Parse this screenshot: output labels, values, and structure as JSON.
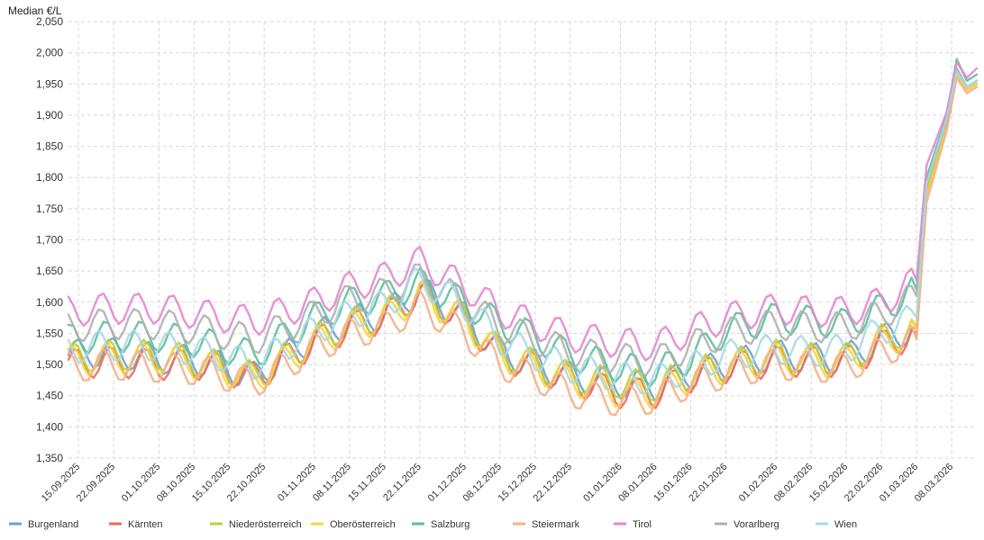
{
  "chart_data": {
    "type": "line",
    "ylabel": "Median €/L",
    "ylim": [
      1.35,
      2.05
    ],
    "yticks": [
      "1,350",
      "1,400",
      "1,450",
      "1,500",
      "1,550",
      "1,600",
      "1,650",
      "1,700",
      "1,750",
      "1,800",
      "1,850",
      "1,900",
      "1,950",
      "2,000",
      "2,050"
    ],
    "date_start": "2025-09-13",
    "date_end": "2026-03-13",
    "xticks": [
      "15.09.2025",
      "22.09.2025",
      "01.10.2025",
      "08.10.2025",
      "15.10.2025",
      "22.10.2025",
      "01.11.2025",
      "08.11.2025",
      "15.11.2025",
      "22.11.2025",
      "01.12.2025",
      "08.12.2025",
      "15.12.2025",
      "22.12.2025",
      "01.01.2026",
      "08.01.2026",
      "15.01.2026",
      "22.01.2026",
      "01.02.2026",
      "08.02.2026",
      "15.02.2026",
      "22.02.2026",
      "01.03.2026",
      "08.03.2026"
    ],
    "grid": true,
    "legend_position": "bottom",
    "series": [
      {
        "name": "Burgenland",
        "color": "#6f9fcf",
        "points": [
          [
            "2025-09-13",
            1.515
          ],
          [
            "2025-09-20",
            1.52
          ],
          [
            "2025-10-01",
            1.51
          ],
          [
            "2025-10-10",
            1.505
          ],
          [
            "2025-10-20",
            1.48
          ],
          [
            "2025-11-01",
            1.545
          ],
          [
            "2025-11-08",
            1.57
          ],
          [
            "2025-11-15",
            1.58
          ],
          [
            "2025-11-22",
            1.62
          ],
          [
            "2025-12-01",
            1.575
          ],
          [
            "2025-12-08",
            1.52
          ],
          [
            "2025-12-15",
            1.5
          ],
          [
            "2025-12-22",
            1.48
          ],
          [
            "2026-01-01",
            1.47
          ],
          [
            "2026-01-08",
            1.465
          ],
          [
            "2026-01-15",
            1.485
          ],
          [
            "2026-01-22",
            1.5
          ],
          [
            "2026-02-01",
            1.515
          ],
          [
            "2026-02-08",
            1.51
          ],
          [
            "2026-02-15",
            1.51
          ],
          [
            "2026-02-22",
            1.54
          ],
          [
            "2026-03-01",
            1.56
          ],
          [
            "2026-03-03",
            1.78
          ],
          [
            "2026-03-07",
            1.89
          ],
          [
            "2026-03-09",
            1.975
          ],
          [
            "2026-03-11",
            1.945
          ],
          [
            "2026-03-13",
            1.955
          ]
        ]
      },
      {
        "name": "Kärnten",
        "color": "#f06a57",
        "points": [
          [
            "2025-09-13",
            1.5
          ],
          [
            "2025-09-20",
            1.505
          ],
          [
            "2025-10-01",
            1.5
          ],
          [
            "2025-10-10",
            1.5
          ],
          [
            "2025-10-20",
            1.48
          ],
          [
            "2025-11-01",
            1.535
          ],
          [
            "2025-11-08",
            1.56
          ],
          [
            "2025-11-15",
            1.575
          ],
          [
            "2025-11-22",
            1.615
          ],
          [
            "2025-12-01",
            1.57
          ],
          [
            "2025-12-08",
            1.515
          ],
          [
            "2025-12-15",
            1.495
          ],
          [
            "2025-12-22",
            1.475
          ],
          [
            "2026-01-01",
            1.455
          ],
          [
            "2026-01-08",
            1.455
          ],
          [
            "2026-01-15",
            1.48
          ],
          [
            "2026-01-22",
            1.495
          ],
          [
            "2026-02-01",
            1.505
          ],
          [
            "2026-02-08",
            1.505
          ],
          [
            "2026-02-15",
            1.505
          ],
          [
            "2026-02-22",
            1.53
          ],
          [
            "2026-03-01",
            1.55
          ],
          [
            "2026-03-03",
            1.77
          ],
          [
            "2026-03-07",
            1.89
          ],
          [
            "2026-03-09",
            1.965
          ],
          [
            "2026-03-11",
            1.94
          ],
          [
            "2026-03-13",
            1.95
          ]
        ]
      },
      {
        "name": "Niederösterreich",
        "color": "#b8d33a",
        "points": [
          [
            "2025-09-13",
            1.51
          ],
          [
            "2025-09-20",
            1.515
          ],
          [
            "2025-10-01",
            1.515
          ],
          [
            "2025-10-10",
            1.505
          ],
          [
            "2025-10-20",
            1.48
          ],
          [
            "2025-11-01",
            1.54
          ],
          [
            "2025-11-08",
            1.565
          ],
          [
            "2025-11-15",
            1.58
          ],
          [
            "2025-11-22",
            1.615
          ],
          [
            "2025-12-01",
            1.575
          ],
          [
            "2025-12-08",
            1.52
          ],
          [
            "2025-12-15",
            1.5
          ],
          [
            "2025-12-22",
            1.48
          ],
          [
            "2026-01-01",
            1.47
          ],
          [
            "2026-01-08",
            1.465
          ],
          [
            "2026-01-15",
            1.485
          ],
          [
            "2026-01-22",
            1.5
          ],
          [
            "2026-02-01",
            1.515
          ],
          [
            "2026-02-08",
            1.51
          ],
          [
            "2026-02-15",
            1.51
          ],
          [
            "2026-02-22",
            1.54
          ],
          [
            "2026-03-01",
            1.56
          ],
          [
            "2026-03-03",
            1.78
          ],
          [
            "2026-03-07",
            1.885
          ],
          [
            "2026-03-09",
            1.97
          ],
          [
            "2026-03-11",
            1.94
          ],
          [
            "2026-03-13",
            1.95
          ]
        ]
      },
      {
        "name": "Oberösterreich",
        "color": "#fdd23c",
        "points": [
          [
            "2025-09-13",
            1.505
          ],
          [
            "2025-09-20",
            1.51
          ],
          [
            "2025-10-01",
            1.51
          ],
          [
            "2025-10-10",
            1.5
          ],
          [
            "2025-10-20",
            1.475
          ],
          [
            "2025-11-01",
            1.535
          ],
          [
            "2025-11-08",
            1.56
          ],
          [
            "2025-11-15",
            1.575
          ],
          [
            "2025-11-22",
            1.61
          ],
          [
            "2025-12-01",
            1.57
          ],
          [
            "2025-12-08",
            1.515
          ],
          [
            "2025-12-15",
            1.495
          ],
          [
            "2025-12-22",
            1.475
          ],
          [
            "2026-01-01",
            1.455
          ],
          [
            "2026-01-08",
            1.455
          ],
          [
            "2026-01-15",
            1.48
          ],
          [
            "2026-01-22",
            1.495
          ],
          [
            "2026-02-01",
            1.51
          ],
          [
            "2026-02-08",
            1.505
          ],
          [
            "2026-02-15",
            1.505
          ],
          [
            "2026-02-22",
            1.535
          ],
          [
            "2026-03-01",
            1.555
          ],
          [
            "2026-03-03",
            1.77
          ],
          [
            "2026-03-07",
            1.88
          ],
          [
            "2026-03-09",
            1.965
          ],
          [
            "2026-03-11",
            1.94
          ],
          [
            "2026-03-13",
            1.95
          ]
        ]
      },
      {
        "name": "Salzburg",
        "color": "#5cbf99",
        "points": [
          [
            "2025-09-13",
            1.54
          ],
          [
            "2025-09-20",
            1.545
          ],
          [
            "2025-10-01",
            1.545
          ],
          [
            "2025-10-10",
            1.535
          ],
          [
            "2025-10-20",
            1.515
          ],
          [
            "2025-11-01",
            1.575
          ],
          [
            "2025-11-08",
            1.6
          ],
          [
            "2025-11-15",
            1.61
          ],
          [
            "2025-11-22",
            1.63
          ],
          [
            "2025-12-01",
            1.6
          ],
          [
            "2025-12-08",
            1.565
          ],
          [
            "2025-12-15",
            1.545
          ],
          [
            "2025-12-22",
            1.515
          ],
          [
            "2026-01-01",
            1.495
          ],
          [
            "2026-01-08",
            1.49
          ],
          [
            "2026-01-15",
            1.51
          ],
          [
            "2026-01-22",
            1.555
          ],
          [
            "2026-02-01",
            1.575
          ],
          [
            "2026-02-08",
            1.57
          ],
          [
            "2026-02-15",
            1.565
          ],
          [
            "2026-02-22",
            1.59
          ],
          [
            "2026-03-01",
            1.62
          ],
          [
            "2026-03-03",
            1.8
          ],
          [
            "2026-03-07",
            1.9
          ],
          [
            "2026-03-09",
            1.99
          ],
          [
            "2026-03-11",
            1.955
          ],
          [
            "2026-03-13",
            1.965
          ]
        ]
      },
      {
        "name": "Steiermark",
        "color": "#f3b08a",
        "points": [
          [
            "2025-09-13",
            1.495
          ],
          [
            "2025-09-20",
            1.5
          ],
          [
            "2025-10-01",
            1.495
          ],
          [
            "2025-10-10",
            1.49
          ],
          [
            "2025-10-20",
            1.47
          ],
          [
            "2025-11-01",
            1.525
          ],
          [
            "2025-11-08",
            1.55
          ],
          [
            "2025-11-15",
            1.56
          ],
          [
            "2025-11-22",
            1.595
          ],
          [
            "2025-12-01",
            1.55
          ],
          [
            "2025-12-08",
            1.5
          ],
          [
            "2025-12-15",
            1.48
          ],
          [
            "2025-12-22",
            1.455
          ],
          [
            "2026-01-01",
            1.44
          ],
          [
            "2026-01-08",
            1.445
          ],
          [
            "2026-01-15",
            1.47
          ],
          [
            "2026-01-22",
            1.485
          ],
          [
            "2026-02-01",
            1.5
          ],
          [
            "2026-02-08",
            1.495
          ],
          [
            "2026-02-15",
            1.495
          ],
          [
            "2026-02-22",
            1.52
          ],
          [
            "2026-03-01",
            1.54
          ],
          [
            "2026-03-03",
            1.76
          ],
          [
            "2026-03-07",
            1.875
          ],
          [
            "2026-03-09",
            1.96
          ],
          [
            "2026-03-11",
            1.935
          ],
          [
            "2026-03-13",
            1.945
          ]
        ]
      },
      {
        "name": "Tirol",
        "color": "#e685d2",
        "points": [
          [
            "2025-09-13",
            1.585
          ],
          [
            "2025-09-20",
            1.59
          ],
          [
            "2025-10-01",
            1.59
          ],
          [
            "2025-10-10",
            1.58
          ],
          [
            "2025-10-20",
            1.57
          ],
          [
            "2025-11-01",
            1.6
          ],
          [
            "2025-11-08",
            1.625
          ],
          [
            "2025-11-15",
            1.64
          ],
          [
            "2025-11-22",
            1.665
          ],
          [
            "2025-12-01",
            1.625
          ],
          [
            "2025-12-08",
            1.585
          ],
          [
            "2025-12-15",
            1.565
          ],
          [
            "2025-12-22",
            1.545
          ],
          [
            "2026-01-01",
            1.535
          ],
          [
            "2026-01-08",
            1.53
          ],
          [
            "2026-01-15",
            1.555
          ],
          [
            "2026-01-22",
            1.575
          ],
          [
            "2026-02-01",
            1.59
          ],
          [
            "2026-02-08",
            1.585
          ],
          [
            "2026-02-15",
            1.585
          ],
          [
            "2026-02-22",
            1.6
          ],
          [
            "2026-03-01",
            1.635
          ],
          [
            "2026-03-03",
            1.82
          ],
          [
            "2026-03-07",
            1.905
          ],
          [
            "2026-03-09",
            1.985
          ],
          [
            "2026-03-11",
            1.96
          ],
          [
            "2026-03-13",
            1.975
          ]
        ]
      },
      {
        "name": "Vorarlberg",
        "color": "#b0b0b0",
        "points": [
          [
            "2025-09-13",
            1.56
          ],
          [
            "2025-09-20",
            1.565
          ],
          [
            "2025-10-01",
            1.565
          ],
          [
            "2025-10-10",
            1.555
          ],
          [
            "2025-10-20",
            1.54
          ],
          [
            "2025-11-01",
            1.58
          ],
          [
            "2025-11-08",
            1.605
          ],
          [
            "2025-11-15",
            1.615
          ],
          [
            "2025-11-22",
            1.64
          ],
          [
            "2025-12-01",
            1.6
          ],
          [
            "2025-12-08",
            1.56
          ],
          [
            "2025-12-15",
            1.54
          ],
          [
            "2025-12-22",
            1.52
          ],
          [
            "2026-01-01",
            1.51
          ],
          [
            "2026-01-08",
            1.505
          ],
          [
            "2026-01-15",
            1.53
          ],
          [
            "2026-01-22",
            1.55
          ],
          [
            "2026-02-01",
            1.565
          ],
          [
            "2026-02-08",
            1.56
          ],
          [
            "2026-02-15",
            1.56
          ],
          [
            "2026-02-22",
            1.58
          ],
          [
            "2026-03-01",
            1.61
          ],
          [
            "2026-03-03",
            1.79
          ],
          [
            "2026-03-07",
            1.89
          ],
          [
            "2026-03-09",
            1.975
          ],
          [
            "2026-03-11",
            1.945
          ],
          [
            "2026-03-13",
            1.955
          ]
        ]
      },
      {
        "name": "Wien",
        "color": "#a7d8e6",
        "points": [
          [
            "2025-09-13",
            1.525
          ],
          [
            "2025-09-20",
            1.53
          ],
          [
            "2025-10-01",
            1.53
          ],
          [
            "2025-10-10",
            1.52
          ],
          [
            "2025-10-20",
            1.5
          ],
          [
            "2025-11-01",
            1.555
          ],
          [
            "2025-11-08",
            1.58
          ],
          [
            "2025-11-15",
            1.595
          ],
          [
            "2025-11-22",
            1.635
          ],
          [
            "2025-12-01",
            1.595
          ],
          [
            "2025-12-08",
            1.54
          ],
          [
            "2025-12-15",
            1.515
          ],
          [
            "2025-12-22",
            1.495
          ],
          [
            "2026-01-01",
            1.48
          ],
          [
            "2026-01-08",
            1.475
          ],
          [
            "2026-01-15",
            1.495
          ],
          [
            "2026-01-22",
            1.515
          ],
          [
            "2026-02-01",
            1.525
          ],
          [
            "2026-02-08",
            1.52
          ],
          [
            "2026-02-15",
            1.525
          ],
          [
            "2026-02-22",
            1.555
          ],
          [
            "2026-03-01",
            1.575
          ],
          [
            "2026-03-03",
            1.79
          ],
          [
            "2026-03-07",
            1.895
          ],
          [
            "2026-03-09",
            1.97
          ],
          [
            "2026-03-11",
            1.945
          ],
          [
            "2026-03-13",
            1.955
          ]
        ]
      }
    ]
  }
}
